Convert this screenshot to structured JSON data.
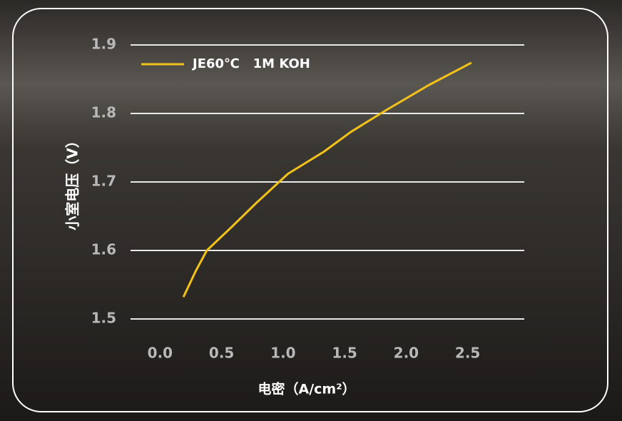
{
  "chart_data": {
    "type": "line",
    "ylabel": "小室电压（V）",
    "xlabel": "电密（A/cm²）",
    "x": [
      0.19,
      0.29,
      0.38,
      0.58,
      0.78,
      1.04,
      1.33,
      1.55,
      1.83,
      2.18,
      2.53
    ],
    "series": [
      {
        "name": "JE60℃   1M KOH",
        "color": "#f2c21b",
        "values": [
          1.532,
          1.57,
          1.6,
          1.634,
          1.669,
          1.712,
          1.744,
          1.773,
          1.804,
          1.841,
          1.874
        ]
      }
    ],
    "xlim": [
      -0.24,
      2.96
    ],
    "ylim": [
      1.5,
      1.9
    ],
    "xticks": [
      {
        "value": 0,
        "label": "0.0"
      },
      0.5,
      {
        "value": 1,
        "label": "1.0"
      },
      1.5,
      {
        "value": 2,
        "label": "2.0"
      },
      2.5
    ],
    "yticks": [
      1.5,
      1.6,
      1.7,
      1.8,
      1.9
    ],
    "grid": true,
    "legend": "upper left"
  }
}
